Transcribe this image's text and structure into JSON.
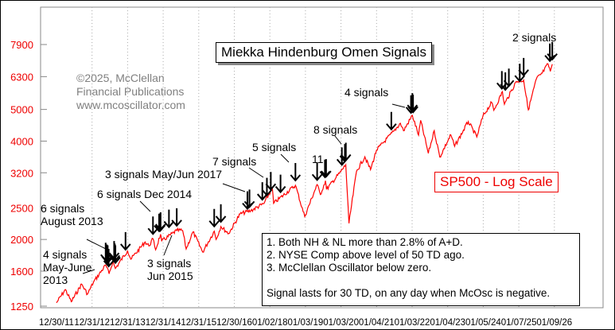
{
  "chart_data": {
    "type": "line",
    "title": "Miekka Hindenburg Omen Signals",
    "series_label": "SP500 - Log Scale",
    "yscale": "log",
    "ylim": [
      1250,
      8500
    ],
    "yticks": [
      1250,
      1600,
      2000,
      2500,
      3200,
      4000,
      5000,
      6300,
      7900
    ],
    "xticks": [
      "12/30/11",
      "12/31/12",
      "12/31/13",
      "12/31/14",
      "12/31/15",
      "12/30/16",
      "01/02/18",
      "01/03/19",
      "01/03/20",
      "01/04/21",
      "01/03/22",
      "01/04/23",
      "01/05/24",
      "01/07/25",
      "01/09/26"
    ],
    "xlim": [
      "2011-12-30",
      "2026-03-01"
    ],
    "grid": "vertical dotted",
    "line_color": "#ff0000",
    "sp500": [
      [
        "2012-01-01",
        1280
      ],
      [
        "2012-04-01",
        1405
      ],
      [
        "2012-06-01",
        1290
      ],
      [
        "2012-09-15",
        1460
      ],
      [
        "2012-11-15",
        1360
      ],
      [
        "2013-01-15",
        1480
      ],
      [
        "2013-05-20",
        1670
      ],
      [
        "2013-06-24",
        1570
      ],
      [
        "2013-08-01",
        1710
      ],
      [
        "2013-08-28",
        1630
      ],
      [
        "2013-12-31",
        1850
      ],
      [
        "2014-02-03",
        1740
      ],
      [
        "2014-06-30",
        1965
      ],
      [
        "2014-08-07",
        1910
      ],
      [
        "2014-09-18",
        2010
      ],
      [
        "2014-10-15",
        1860
      ],
      [
        "2014-12-05",
        2075
      ],
      [
        "2014-12-16",
        1975
      ],
      [
        "2015-05-20",
        2130
      ],
      [
        "2015-07-20",
        2130
      ],
      [
        "2015-08-25",
        1870
      ],
      [
        "2015-11-03",
        2110
      ],
      [
        "2016-02-11",
        1830
      ],
      [
        "2016-06-08",
        2120
      ],
      [
        "2016-06-27",
        2000
      ],
      [
        "2016-08-15",
        2190
      ],
      [
        "2016-11-04",
        2085
      ],
      [
        "2017-03-01",
        2395
      ],
      [
        "2017-06-19",
        2450
      ],
      [
        "2017-10-31",
        2575
      ],
      [
        "2018-01-26",
        2870
      ],
      [
        "2018-02-08",
        2580
      ],
      [
        "2018-09-20",
        2930
      ],
      [
        "2018-12-24",
        2350
      ],
      [
        "2019-04-30",
        2945
      ],
      [
        "2019-06-03",
        2745
      ],
      [
        "2019-07-26",
        3025
      ],
      [
        "2019-08-05",
        2845
      ],
      [
        "2019-12-31",
        3230
      ],
      [
        "2020-02-19",
        3385
      ],
      [
        "2020-03-23",
        2240
      ],
      [
        "2020-06-08",
        3230
      ],
      [
        "2020-09-02",
        3580
      ],
      [
        "2020-10-30",
        3270
      ],
      [
        "2020-12-31",
        3755
      ],
      [
        "2021-06-30",
        4300
      ],
      [
        "2021-09-02",
        4535
      ],
      [
        "2021-10-04",
        4300
      ],
      [
        "2022-01-03",
        4795
      ],
      [
        "2022-03-08",
        4170
      ],
      [
        "2022-03-29",
        4630
      ],
      [
        "2022-06-16",
        3670
      ],
      [
        "2022-08-16",
        4305
      ],
      [
        "2022-10-12",
        3575
      ],
      [
        "2023-02-02",
        4180
      ],
      [
        "2023-03-13",
        3855
      ],
      [
        "2023-07-31",
        4590
      ],
      [
        "2023-10-27",
        4120
      ],
      [
        "2023-12-29",
        4770
      ],
      [
        "2024-03-28",
        5250
      ],
      [
        "2024-04-19",
        4970
      ],
      [
        "2024-07-16",
        5665
      ],
      [
        "2024-08-05",
        5185
      ],
      [
        "2024-12-06",
        6090
      ],
      [
        "2025-02-19",
        6145
      ],
      [
        "2025-04-08",
        4985
      ],
      [
        "2025-06-30",
        6205
      ],
      [
        "2025-08-29",
        6460
      ],
      [
        "2025-10-28",
        6890
      ],
      [
        "2025-11-20",
        6540
      ],
      [
        "2025-12-10",
        6880
      ]
    ],
    "signals": [
      [
        "2013-05-20",
        1670
      ],
      [
        "2013-06-01",
        1650
      ],
      [
        "2013-06-10",
        1640
      ],
      [
        "2013-06-20",
        1600
      ],
      [
        "2013-08-15",
        1690
      ],
      [
        "2013-08-22",
        1660
      ],
      [
        "2013-08-28",
        1640
      ],
      [
        "2013-12-10",
        1800
      ],
      [
        "2014-09-18",
        2010
      ],
      [
        "2014-11-20",
        2050
      ],
      [
        "2014-12-01",
        2055
      ],
      [
        "2014-12-05",
        2070
      ],
      [
        "2015-03-01",
        2110
      ],
      [
        "2015-05-20",
        2130
      ],
      [
        "2016-06-08",
        2120
      ],
      [
        "2016-08-15",
        2190
      ],
      [
        "2017-05-15",
        2400
      ],
      [
        "2017-06-05",
        2430
      ],
      [
        "2017-10-15",
        2560
      ],
      [
        "2017-12-01",
        2640
      ],
      [
        "2018-01-10",
        2750
      ],
      [
        "2018-04-20",
        2700
      ],
      [
        "2018-09-20",
        2930
      ],
      [
        "2019-05-01",
        2940
      ],
      [
        "2019-07-20",
        3000
      ],
      [
        "2019-08-01",
        3010
      ],
      [
        "2020-01-10",
        3270
      ],
      [
        "2020-02-10",
        3350
      ],
      [
        "2020-02-20",
        3380
      ],
      [
        "2021-06-01",
        4200
      ],
      [
        "2021-12-20",
        4720
      ],
      [
        "2022-01-03",
        4795
      ],
      [
        "2022-01-10",
        4740
      ],
      [
        "2024-07-10",
        5600
      ],
      [
        "2024-08-15",
        5550
      ],
      [
        "2024-09-20",
        5700
      ],
      [
        "2025-01-10",
        5900
      ],
      [
        "2025-02-19",
        6145
      ],
      [
        "2025-11-15",
        6800
      ],
      [
        "2025-12-10",
        6880
      ]
    ]
  },
  "annotations": {
    "a1": [
      "4 signals",
      "May-June",
      "2013"
    ],
    "a2": [
      "6 signals",
      "August 2013"
    ],
    "a3": "6 signals Dec 2014",
    "a4": [
      "3 signals",
      "Jun 2015"
    ],
    "a5": "3 signals May/Jun 2017",
    "a6": "7 signals",
    "a7": "5 signals",
    "a8": "11",
    "a9": "8 signals",
    "a10": "4 signals",
    "a11": "2 signals"
  },
  "watermark": [
    "©2025, McClellan",
    "Financial Publications",
    "www.mcoscillator.com"
  ],
  "rules": [
    "1. Both NH & NL more than 2.8% of A+D.",
    "2. NYSE Comp above level of 50 TD ago.",
    "3. McClellan Oscillator below zero.",
    "Signal lasts for 30 TD, on any day when McOsc is negative."
  ]
}
